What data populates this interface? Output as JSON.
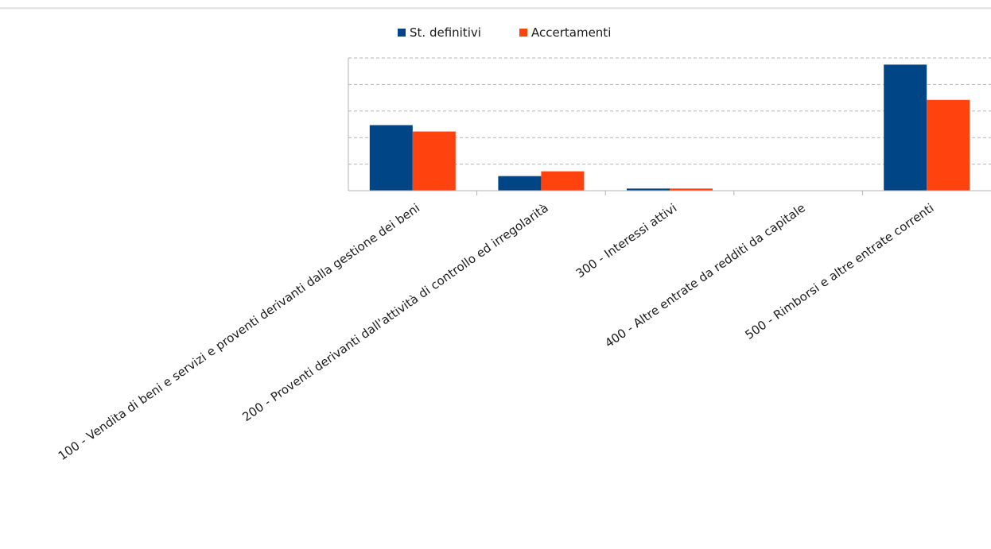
{
  "chart_data": {
    "type": "bar",
    "title": "",
    "xlabel": "",
    "ylabel": "",
    "ylim": [
      0,
      5
    ],
    "grid": true,
    "legend_placement": "top-center",
    "categories": [
      "100 - Vendita di beni e servizi e proventi derivanti dalla gestione dei beni",
      "200 - Proventi derivanti dall'attività di controllo ed irregolarità",
      "300 - Interessi attivi",
      "400 - Altre entrate da redditi da capitale",
      "500 - Rimborsi e altre entrate correnti"
    ],
    "series": [
      {
        "name": "St. definitivi",
        "color": "#004586",
        "values": [
          2.47,
          0.55,
          0.08,
          0.0,
          4.75
        ]
      },
      {
        "name": "Accertamenti",
        "color": "#ff420e",
        "values": [
          2.23,
          0.73,
          0.08,
          0.0,
          3.42
        ]
      }
    ]
  }
}
